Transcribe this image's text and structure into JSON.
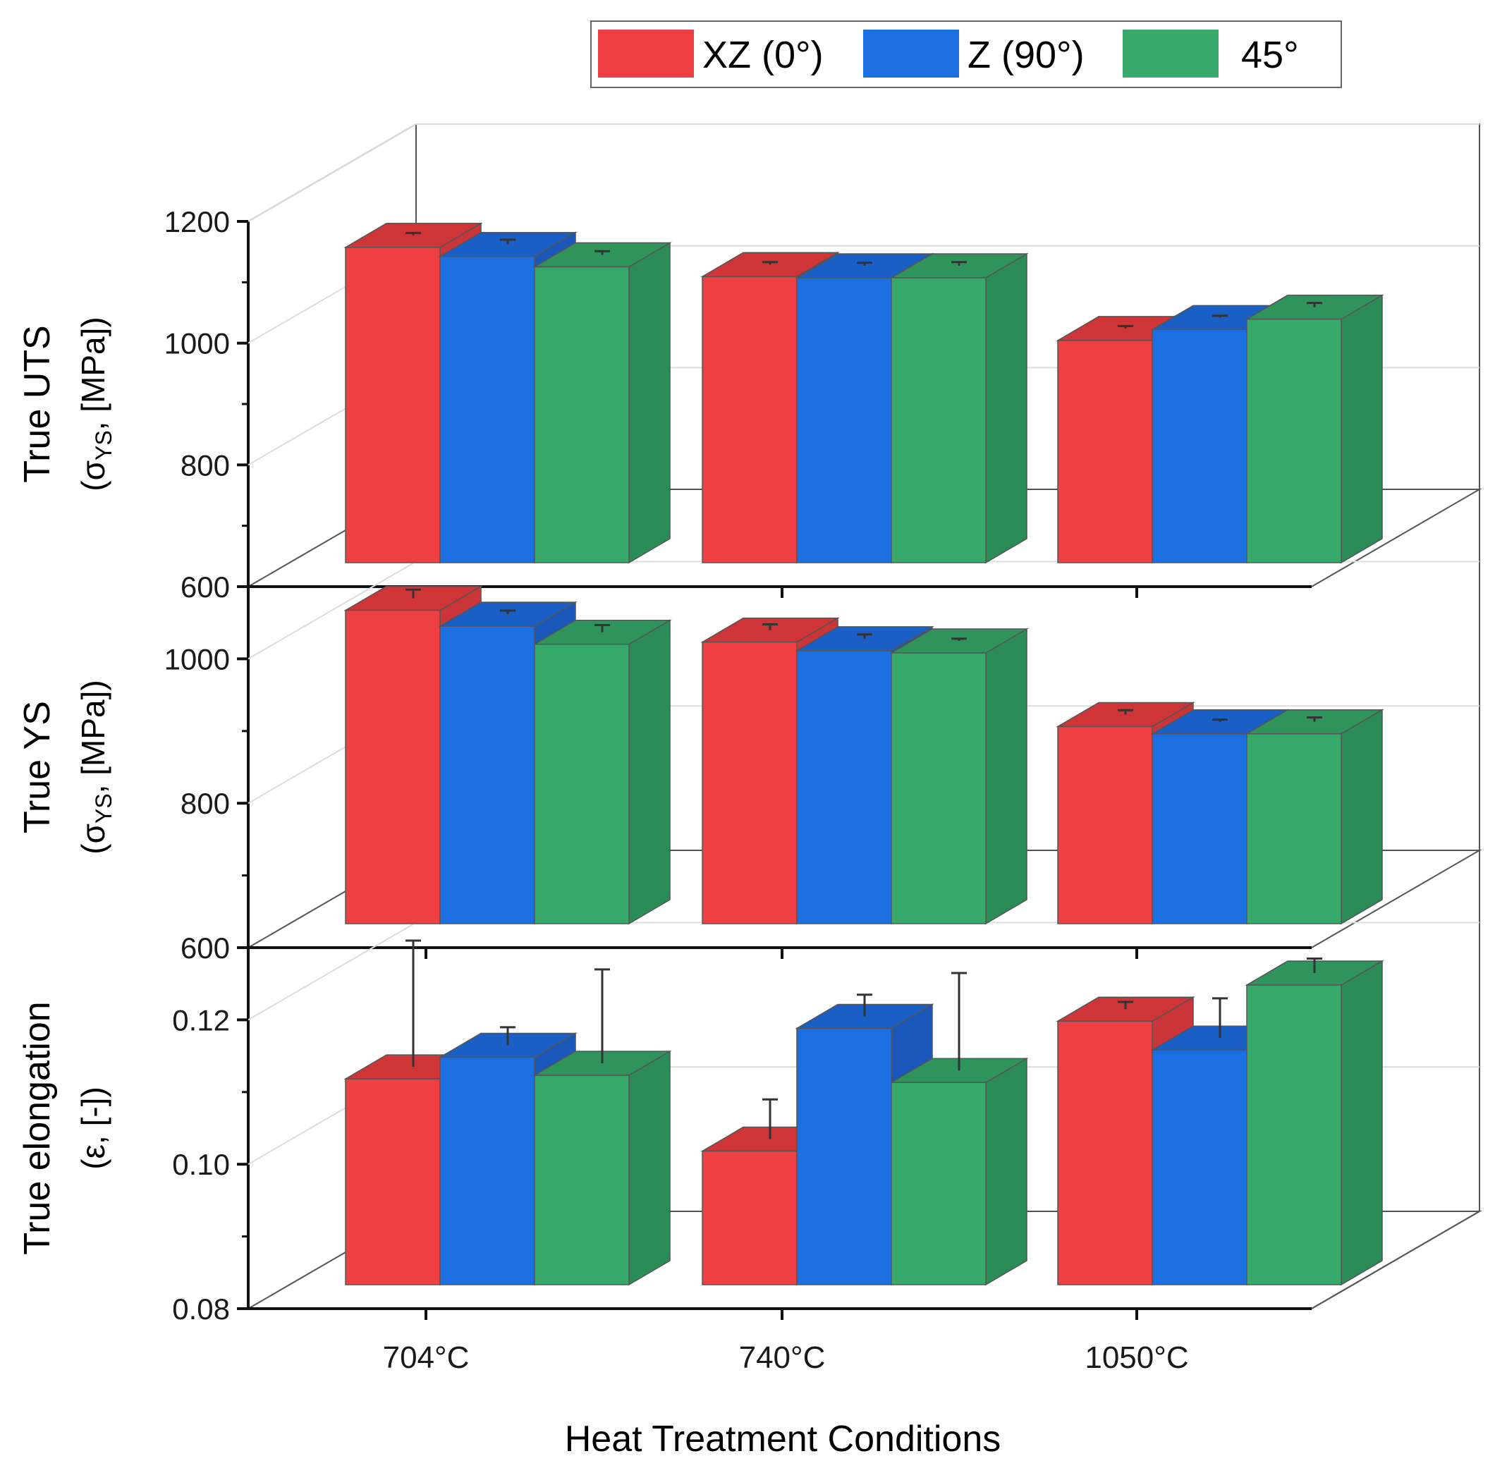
{
  "chart_data": {
    "type": "bar",
    "style": "3d-grouped",
    "xlabel": "Heat Treatment Conditions",
    "categories": [
      "704°C",
      "740°C",
      "1050°C"
    ],
    "legend": {
      "position": "top-right",
      "entries": [
        {
          "name": "XZ (0°)",
          "color": "#EE4042"
        },
        {
          "name": "Z (90°)",
          "color": "#1B6FE0"
        },
        {
          "name": "45°",
          "color": "#36A96A"
        }
      ]
    },
    "panels": [
      {
        "id": "uts",
        "ylabel": "True UTS",
        "ylabel_sub": "(σ",
        "ylabel_subscript": "YS",
        "ylabel_tail": ", [MPa])",
        "ylim": [
          600,
          1200
        ],
        "yticks": [
          "1200",
          "1000",
          "800",
          "600"
        ],
        "ytick_values": [
          1200,
          1000,
          800,
          600
        ],
        "series": [
          {
            "name": "XZ (0°)",
            "values": [
              1118,
              1070,
              965
            ],
            "errors": [
              4,
              4,
              4
            ]
          },
          {
            "name": "Z (90°)",
            "values": [
              1103,
              1068,
              983
            ],
            "errors": [
              8,
              5,
              3
            ]
          },
          {
            "name": "45°",
            "values": [
              1086,
              1068,
              1000
            ],
            "errors": [
              6,
              6,
              7
            ]
          }
        ]
      },
      {
        "id": "ys",
        "ylabel": "True YS",
        "ylabel_sub": "(σ",
        "ylabel_subscript": "YS",
        "ylabel_tail": ", [MPa])",
        "ylim": [
          600,
          1100
        ],
        "yticks": [
          "1000",
          "800",
          "600"
        ],
        "ytick_values": [
          1000,
          800,
          600
        ],
        "series": [
          {
            "name": "XZ (0°)",
            "values": [
              1034,
              990,
              873
            ],
            "errors": [
              12,
              8,
              6
            ]
          },
          {
            "name": "Z (90°)",
            "values": [
              1012,
              978,
              863
            ],
            "errors": [
              5,
              6,
              3
            ]
          },
          {
            "name": "45°",
            "values": [
              987,
              975,
              863
            ],
            "errors": [
              10,
              3,
              6
            ]
          }
        ]
      },
      {
        "id": "elong",
        "ylabel": "True elongation",
        "ylabel_sub": "(ε, [-])",
        "ylim": [
          0.08,
          0.13
        ],
        "yticks": [
          "0.12",
          "0.10",
          "0.08"
        ],
        "ytick_values": [
          0.12,
          0.1,
          0.08
        ],
        "series": [
          {
            "name": "XZ (0°)",
            "values": [
              0.1085,
              0.0985,
              0.1165
            ],
            "errors": [
              0.0175,
              0.0055,
              0.001
            ]
          },
          {
            "name": "Z (90°)",
            "values": [
              0.1115,
              0.1155,
              0.1125
            ],
            "errors": [
              0.0025,
              0.003,
              0.0055
            ]
          },
          {
            "name": "45°",
            "values": [
              0.109,
              0.108,
              0.1215
            ],
            "errors": [
              0.013,
              0.0135,
              0.002
            ]
          }
        ]
      }
    ]
  }
}
